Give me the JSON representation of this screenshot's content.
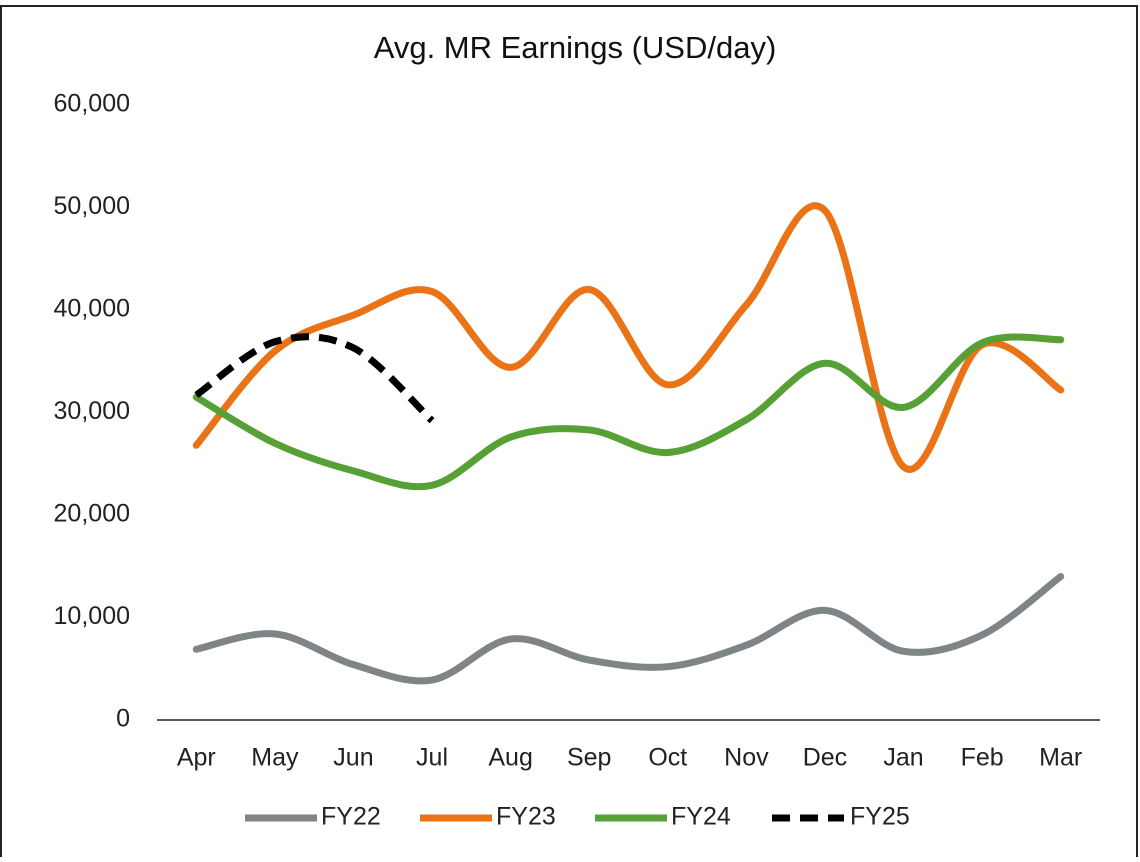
{
  "chart_data": {
    "type": "line",
    "title": "Avg. MR Earnings (USD/day)",
    "categories": [
      "Apr",
      "May",
      "Jun",
      "Jul",
      "Aug",
      "Sep",
      "Oct",
      "Nov",
      "Dec",
      "Jan",
      "Feb",
      "Mar"
    ],
    "series": [
      {
        "name": "FY22",
        "color": "#7f8487",
        "values": [
          6900,
          8400,
          5400,
          3900,
          7900,
          5850,
          5200,
          7300,
          10700,
          6700,
          8300,
          14000
        ]
      },
      {
        "name": "FY23",
        "color": "#ea7317",
        "values": [
          26800,
          36000,
          39500,
          41800,
          34400,
          42000,
          32700,
          40500,
          49700,
          24700,
          36600,
          32200
        ]
      },
      {
        "name": "FY24",
        "color": "#56a035",
        "values": [
          31500,
          27000,
          24300,
          22900,
          27600,
          28300,
          26100,
          29300,
          34800,
          30500,
          36800,
          37100
        ]
      },
      {
        "name": "FY25",
        "color": "#000000",
        "dashed": true,
        "values": [
          31700,
          36900,
          36300,
          29200,
          null,
          null,
          null,
          null,
          null,
          null,
          null,
          null
        ]
      }
    ],
    "ylim": [
      0,
      60000
    ],
    "yticks": [
      0,
      {
        "value": 10000,
        "label": "10,000"
      },
      {
        "value": 20000,
        "label": "20,000"
      },
      {
        "value": 30000,
        "label": "30,000"
      },
      {
        "value": 40000,
        "label": "40,000"
      },
      {
        "value": 50000,
        "label": "50,000"
      },
      {
        "value": 60000,
        "label": "60,000"
      }
    ],
    "legend": "bottom",
    "smooth": true
  }
}
